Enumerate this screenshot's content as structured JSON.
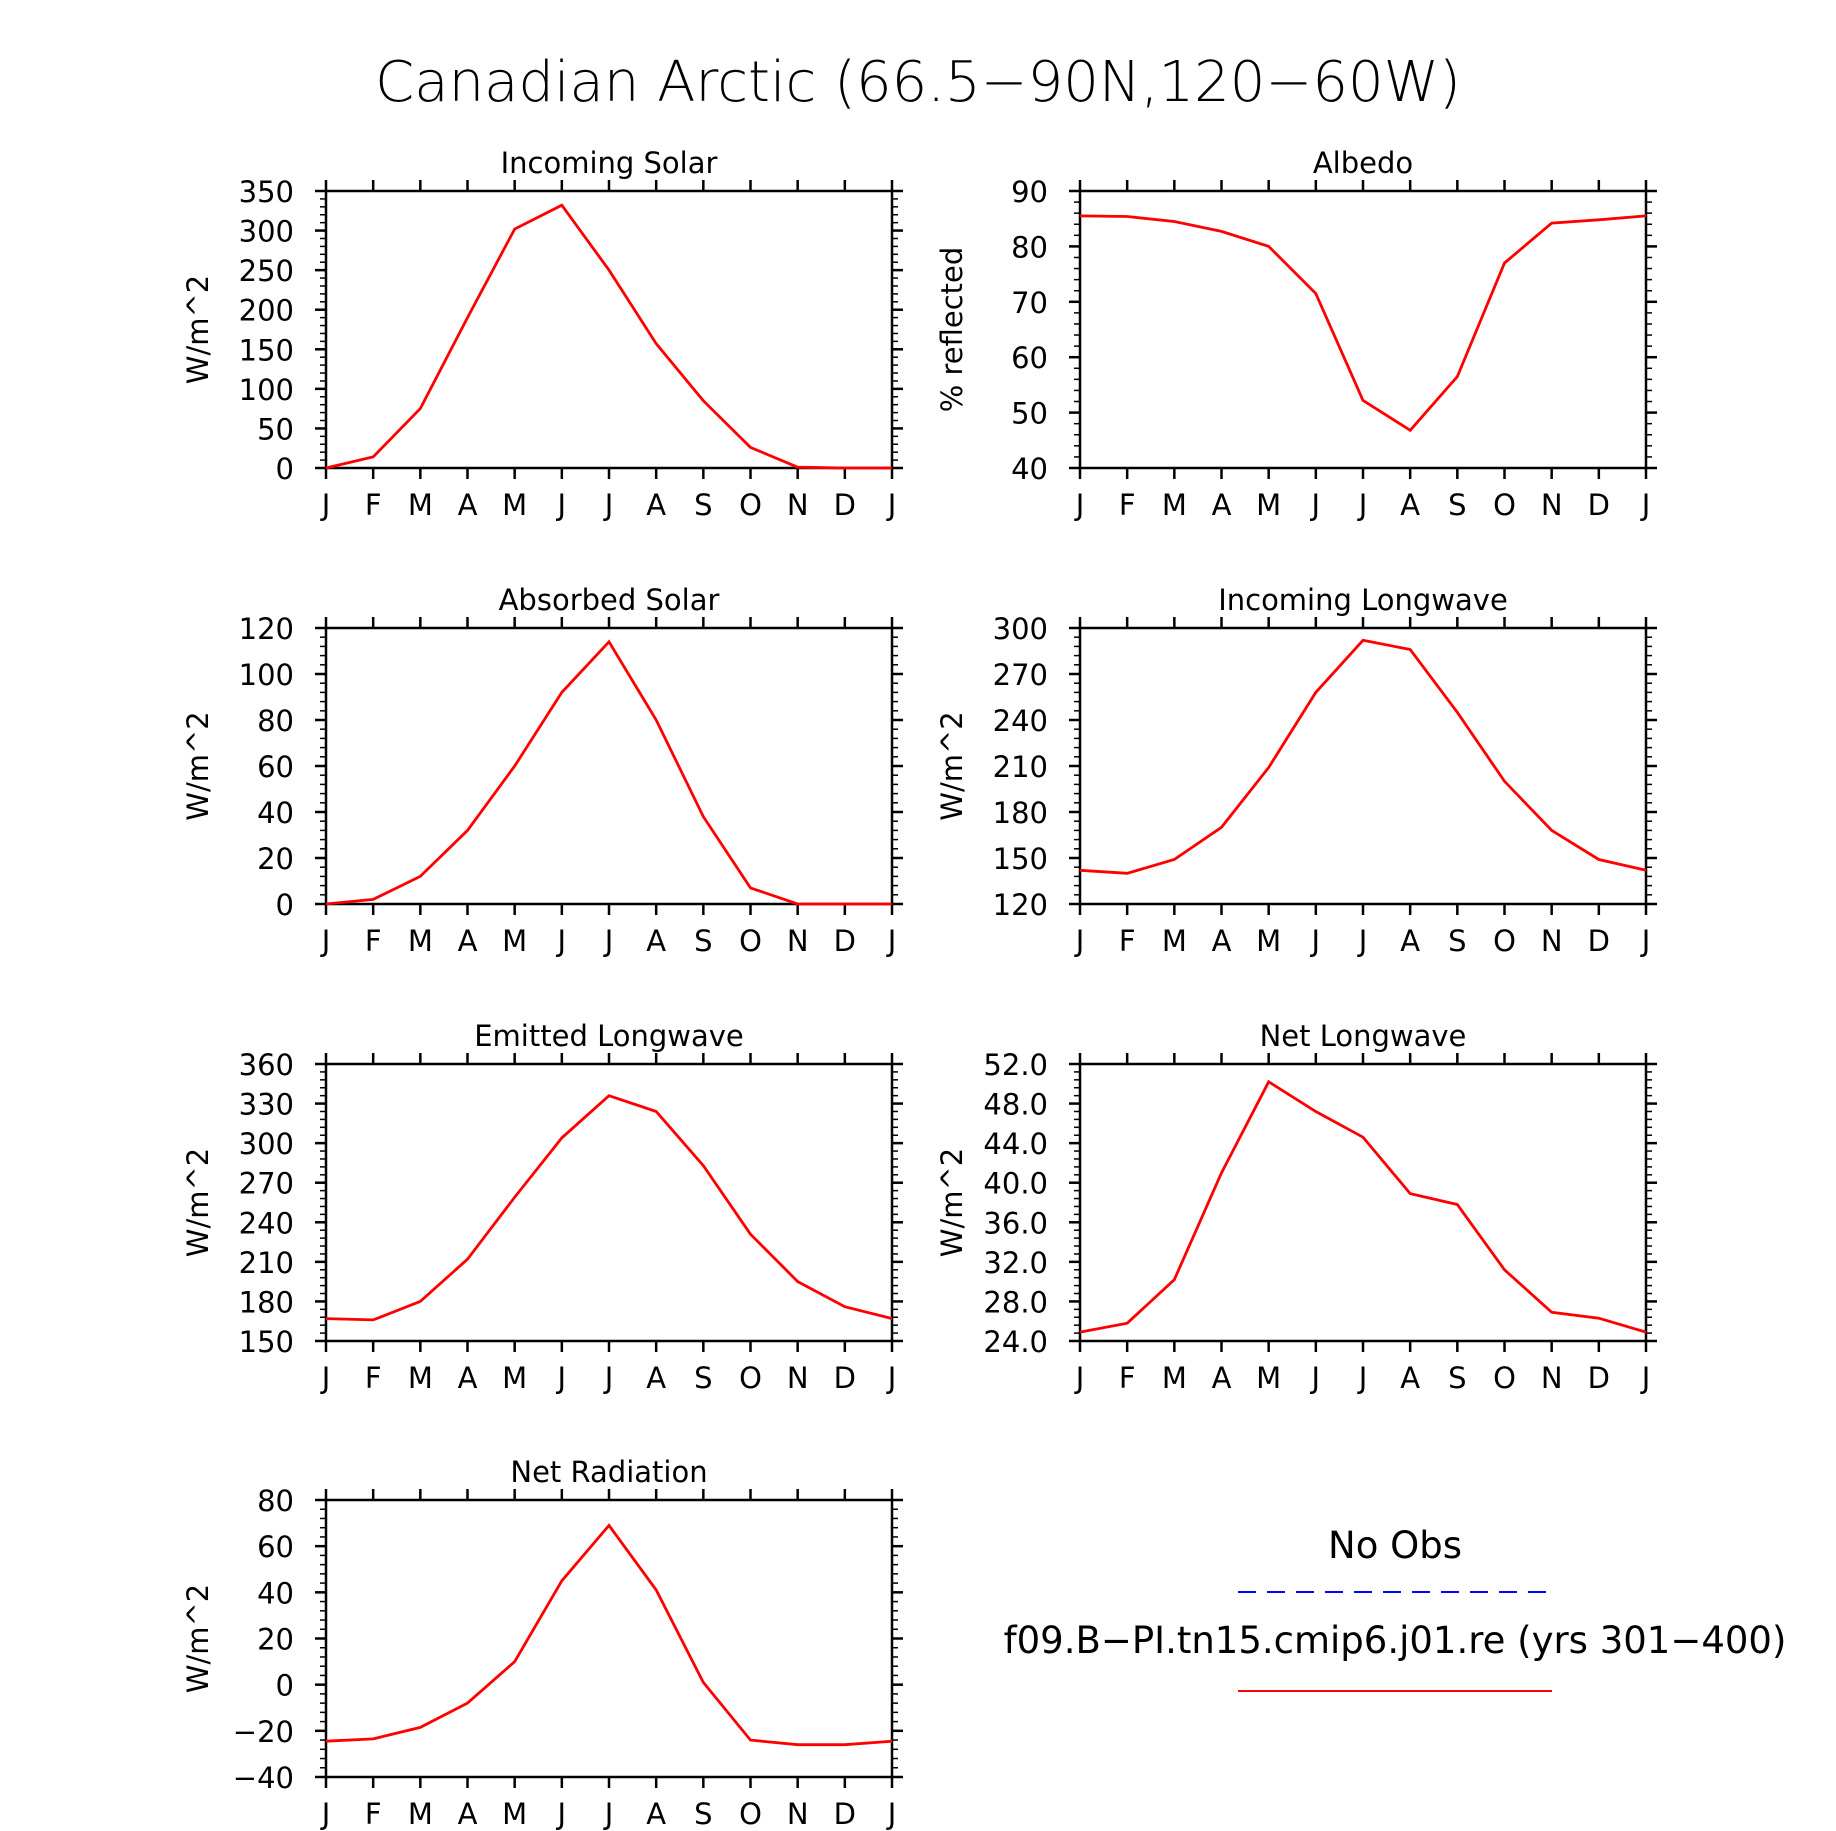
{
  "figure": {
    "title": "Canadian Arctic (66.5−90N,120−60W)"
  },
  "legend": {
    "entries": [
      {
        "label": "No Obs",
        "color": "#0000ff",
        "style": "dashed"
      },
      {
        "label": "f09.B−PI.tn15.cmip6.j01.re (yrs 301−400)",
        "color": "#ff0000",
        "style": "solid"
      }
    ]
  },
  "months": [
    "J",
    "F",
    "M",
    "A",
    "M",
    "J",
    "J",
    "A",
    "S",
    "O",
    "N",
    "D",
    "J"
  ],
  "chart_data": [
    {
      "type": "line",
      "title": "Incoming Solar",
      "ylabel": "W/m^2",
      "ylim": [
        0,
        350
      ],
      "yticks": [
        0,
        50,
        100,
        150,
        200,
        250,
        300,
        350
      ],
      "ytick_labels": [
        "0",
        "50",
        "100",
        "150",
        "200",
        "250",
        "300",
        "350"
      ],
      "x": [
        "J",
        "F",
        "M",
        "A",
        "M",
        "J",
        "J",
        "A",
        "S",
        "O",
        "N",
        "D",
        "J"
      ],
      "series": [
        {
          "color": "#ff0000",
          "values": [
            0,
            14,
            75,
            190,
            302,
            332,
            250,
            157,
            85,
            26,
            1,
            0,
            0
          ]
        }
      ]
    },
    {
      "type": "line",
      "title": "Albedo",
      "ylabel": "% reflected",
      "ylim": [
        40,
        90
      ],
      "yticks": [
        40,
        50,
        60,
        70,
        80,
        90
      ],
      "ytick_labels": [
        "40",
        "50",
        "60",
        "70",
        "80",
        "90"
      ],
      "x": [
        "J",
        "F",
        "M",
        "A",
        "M",
        "J",
        "J",
        "A",
        "S",
        "O",
        "N",
        "D",
        "J"
      ],
      "series": [
        {
          "color": "#ff0000",
          "values": [
            85.5,
            85.4,
            84.5,
            82.7,
            80.0,
            71.5,
            52.2,
            46.8,
            56.5,
            77.0,
            84.2,
            84.8,
            85.5
          ]
        }
      ]
    },
    {
      "type": "line",
      "title": "Absorbed Solar",
      "ylabel": "W/m^2",
      "ylim": [
        0,
        120
      ],
      "yticks": [
        0,
        20,
        40,
        60,
        80,
        100,
        120
      ],
      "ytick_labels": [
        "0",
        "20",
        "40",
        "60",
        "80",
        "100",
        "120"
      ],
      "x": [
        "J",
        "F",
        "M",
        "A",
        "M",
        "J",
        "J",
        "A",
        "S",
        "O",
        "N",
        "D",
        "J"
      ],
      "series": [
        {
          "color": "#ff0000",
          "values": [
            0,
            2,
            12,
            32,
            60,
            92,
            114,
            80,
            38,
            7,
            0,
            0,
            0
          ]
        }
      ]
    },
    {
      "type": "line",
      "title": "Incoming Longwave",
      "ylabel": "W/m^2",
      "ylim": [
        120,
        300
      ],
      "yticks": [
        120,
        150,
        180,
        210,
        240,
        270,
        300
      ],
      "ytick_labels": [
        "120",
        "150",
        "180",
        "210",
        "240",
        "270",
        "300"
      ],
      "x": [
        "J",
        "F",
        "M",
        "A",
        "M",
        "J",
        "J",
        "A",
        "S",
        "O",
        "N",
        "D",
        "J"
      ],
      "series": [
        {
          "color": "#ff0000",
          "values": [
            142,
            140,
            149,
            170,
            209,
            258,
            292,
            286,
            245,
            200,
            168,
            149,
            142
          ]
        }
      ]
    },
    {
      "type": "line",
      "title": "Emitted Longwave",
      "ylabel": "W/m^2",
      "ylim": [
        150,
        360
      ],
      "yticks": [
        150,
        180,
        210,
        240,
        270,
        300,
        330,
        360
      ],
      "ytick_labels": [
        "150",
        "180",
        "210",
        "240",
        "270",
        "300",
        "330",
        "360"
      ],
      "x": [
        "J",
        "F",
        "M",
        "A",
        "M",
        "J",
        "J",
        "A",
        "S",
        "O",
        "N",
        "D",
        "J"
      ],
      "series": [
        {
          "color": "#ff0000",
          "values": [
            167,
            166,
            180,
            212,
            259,
            304,
            336,
            324,
            283,
            231,
            195,
            176,
            167
          ]
        }
      ]
    },
    {
      "type": "line",
      "title": "Net Longwave",
      "ylabel": "W/m^2",
      "ylim": [
        24,
        52
      ],
      "yticks": [
        24,
        28,
        32,
        36,
        40,
        44,
        48,
        52
      ],
      "ytick_labels": [
        "24.0",
        "28.0",
        "32.0",
        "36.0",
        "40.0",
        "44.0",
        "48.0",
        "52.0"
      ],
      "x": [
        "J",
        "F",
        "M",
        "A",
        "M",
        "J",
        "J",
        "A",
        "S",
        "O",
        "N",
        "D",
        "J"
      ],
      "series": [
        {
          "color": "#ff0000",
          "values": [
            24.9,
            25.8,
            30.2,
            41.0,
            50.2,
            47.2,
            44.6,
            38.9,
            37.8,
            31.2,
            26.9,
            26.3,
            24.9
          ]
        }
      ]
    },
    {
      "type": "line",
      "title": "Net Radiation",
      "ylabel": "W/m^2",
      "ylim": [
        -40,
        80
      ],
      "yticks": [
        -40,
        -20,
        0,
        20,
        40,
        60,
        80
      ],
      "ytick_labels": [
        "−40",
        "−20",
        "0",
        "20",
        "40",
        "60",
        "80"
      ],
      "x": [
        "J",
        "F",
        "M",
        "A",
        "M",
        "J",
        "J",
        "A",
        "S",
        "O",
        "N",
        "D",
        "J"
      ],
      "series": [
        {
          "color": "#ff0000",
          "values": [
            -24.5,
            -23.5,
            -18.5,
            -8,
            10,
            45,
            69,
            41,
            1,
            -24,
            -26,
            -26,
            -24.5
          ]
        }
      ]
    }
  ]
}
